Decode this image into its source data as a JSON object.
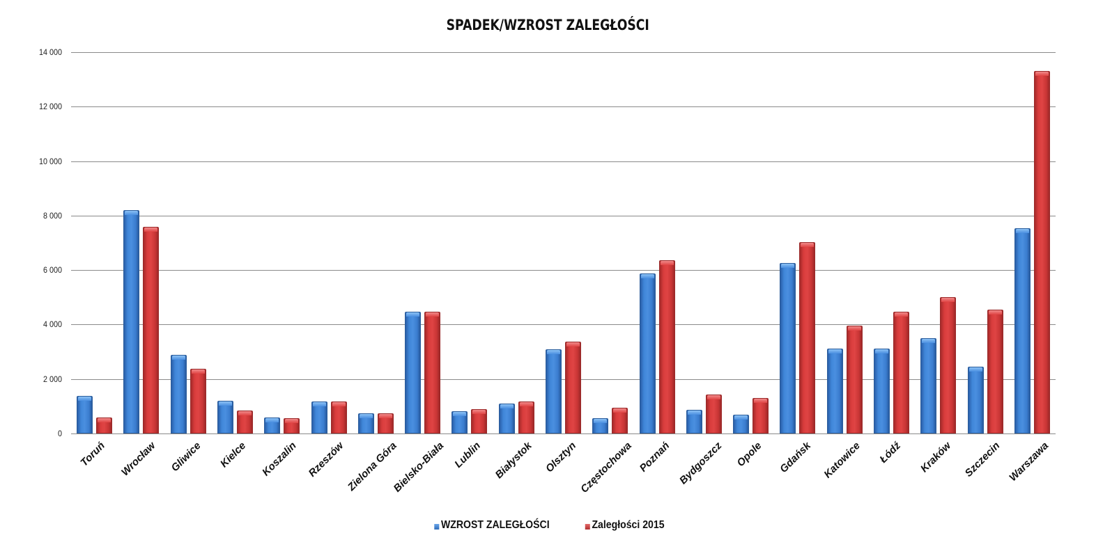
{
  "chart_data": {
    "type": "bar",
    "title": "SPADEK/WZROST ZALEGŁOŚCI",
    "xlabel": "",
    "ylabel": "",
    "ylim": [
      0,
      14000
    ],
    "yticks": [
      0,
      2000,
      4000,
      6000,
      8000,
      10000,
      12000,
      14000
    ],
    "ytick_labels": [
      "0",
      "2 000",
      "4 000",
      "6 000",
      "8 000",
      "10 000",
      "12 000",
      "14 000"
    ],
    "grid": true,
    "legend_position": "bottom",
    "categories": [
      "Toruń",
      "Wrocław",
      "Gliwice",
      "Kielce",
      "Koszalin",
      "Rzeszów",
      "Zielona Góra",
      "Bielsko-Biała",
      "Lublin",
      "Białystok",
      "Olsztyn",
      "Częstochowa",
      "Poznań",
      "Bydgoszcz",
      "Opole",
      "Gdańsk",
      "Katowice",
      "Łódź",
      "Kraków",
      "Szczecin",
      "Warszawa"
    ],
    "series": [
      {
        "name": "WZROST ZALEGŁOŚCI",
        "color": "#3d7fd0",
        "values": [
          1390,
          8200,
          2880,
          1210,
          600,
          1180,
          750,
          4480,
          810,
          1100,
          3090,
          570,
          5880,
          880,
          700,
          6250,
          3120,
          3120,
          3490,
          2460,
          7540
        ]
      },
      {
        "name": "Zaległości 2015",
        "color": "#d63b3b",
        "values": [
          600,
          7600,
          2380,
          840,
          560,
          1180,
          750,
          4480,
          900,
          1180,
          3370,
          950,
          6370,
          1420,
          1310,
          7020,
          3950,
          4460,
          5000,
          4560,
          13300
        ]
      }
    ]
  },
  "legend": {
    "items": [
      {
        "label": "WZROST ZALEGŁOŚCI",
        "color": "#3d7fd0"
      },
      {
        "label": "Zaległości 2015",
        "color": "#d63b3b"
      }
    ]
  }
}
